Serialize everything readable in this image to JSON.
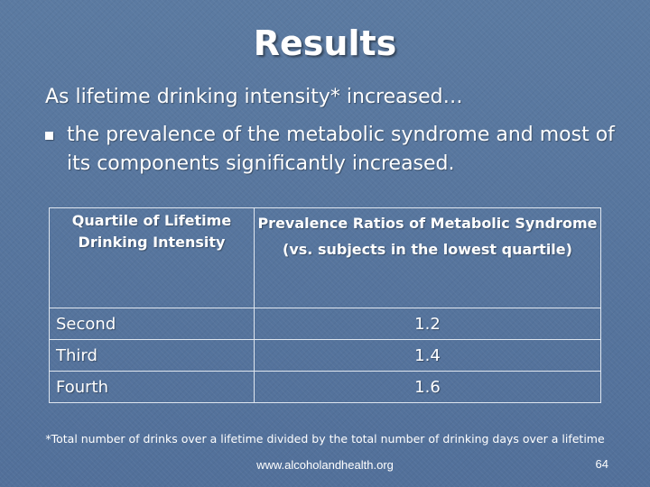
{
  "slide": {
    "title": "Results",
    "intro": "As lifetime drinking intensity* increased…",
    "bullet": "the prevalence of the metabolic syndrome and most of its components significantly increased."
  },
  "table": {
    "header_col1": "Quartile of Lifetime Drinking Intensity",
    "header_col2": "Prevalence Ratios of Metabolic Syndrome (vs. subjects in the lowest quartile)",
    "rows": [
      {
        "quartile": "Second",
        "ratio": "1.2"
      },
      {
        "quartile": "Third",
        "ratio": "1.4"
      },
      {
        "quartile": "Fourth",
        "ratio": "1.6"
      }
    ]
  },
  "footer": {
    "footnote": "*Total number of drinks over a lifetime divided by the total number of drinking days over a lifetime",
    "website": "www.alcoholandhealth.org",
    "page_number": "64"
  },
  "colors": {
    "background": "#56749a",
    "text": "#ffffff",
    "table_border": "#dfe6ef"
  }
}
